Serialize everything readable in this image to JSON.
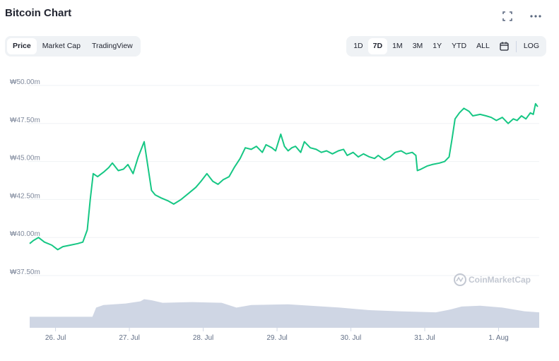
{
  "header": {
    "title": "Bitcoin Chart"
  },
  "tabs": [
    {
      "label": "Price",
      "active": true
    },
    {
      "label": "Market Cap",
      "active": false
    },
    {
      "label": "TradingView",
      "active": false
    }
  ],
  "ranges": [
    {
      "label": "1D",
      "active": false
    },
    {
      "label": "7D",
      "active": true
    },
    {
      "label": "1M",
      "active": false
    },
    {
      "label": "3M",
      "active": false
    },
    {
      "label": "1Y",
      "active": false
    },
    {
      "label": "YTD",
      "active": false
    },
    {
      "label": "ALL",
      "active": false
    }
  ],
  "log_label": "LOG",
  "icons": {
    "fullscreen": "fullscreen-icon",
    "more": "more-icon",
    "calendar": "calendar-icon"
  },
  "watermark": "CoinMarketCap",
  "colors": {
    "line": "#16c784",
    "volume": "#cfd6e4",
    "grid": "#eff2f5",
    "active_tab_bg": "#ffffff",
    "tabs_bg": "#eff2f5"
  },
  "chart_data": {
    "type": "line",
    "ylim": [
      37500000,
      50000000
    ],
    "y_ticks": [
      {
        "value": 50000000,
        "label": "₩50.00m"
      },
      {
        "value": 47500000,
        "label": "₩47.50m"
      },
      {
        "value": 45000000,
        "label": "₩45.00m"
      },
      {
        "value": 42500000,
        "label": "₩42.50m"
      },
      {
        "value": 40000000,
        "label": "₩40.00m"
      },
      {
        "value": 37500000,
        "label": "₩37.50m"
      }
    ],
    "x_ticks": [
      {
        "x": 0.35,
        "label": "26. Jul"
      },
      {
        "x": 1.35,
        "label": "27. Jul"
      },
      {
        "x": 2.35,
        "label": "28. Jul"
      },
      {
        "x": 3.35,
        "label": "29. Jul"
      },
      {
        "x": 4.35,
        "label": "30. Jul"
      },
      {
        "x": 5.35,
        "label": "31. Jul"
      },
      {
        "x": 6.35,
        "label": "1. Aug"
      }
    ],
    "xlim": [
      0,
      6.9
    ],
    "grid": true,
    "legend": "none",
    "price_series": {
      "name": "Price",
      "points": [
        [
          0.0,
          39.6
        ],
        [
          0.05,
          39.8
        ],
        [
          0.12,
          40.0
        ],
        [
          0.2,
          39.7
        ],
        [
          0.3,
          39.5
        ],
        [
          0.38,
          39.2
        ],
        [
          0.45,
          39.4
        ],
        [
          0.55,
          39.5
        ],
        [
          0.65,
          39.6
        ],
        [
          0.72,
          39.7
        ],
        [
          0.78,
          40.5
        ],
        [
          0.82,
          42.5
        ],
        [
          0.86,
          44.2
        ],
        [
          0.92,
          44.0
        ],
        [
          1.0,
          44.3
        ],
        [
          1.07,
          44.6
        ],
        [
          1.12,
          44.9
        ],
        [
          1.2,
          44.4
        ],
        [
          1.27,
          44.5
        ],
        [
          1.33,
          44.8
        ],
        [
          1.4,
          44.2
        ],
        [
          1.47,
          45.3
        ],
        [
          1.55,
          46.3
        ],
        [
          1.6,
          44.7
        ],
        [
          1.65,
          43.1
        ],
        [
          1.7,
          42.8
        ],
        [
          1.78,
          42.6
        ],
        [
          1.88,
          42.4
        ],
        [
          1.95,
          42.2
        ],
        [
          2.05,
          42.5
        ],
        [
          2.15,
          42.9
        ],
        [
          2.25,
          43.3
        ],
        [
          2.32,
          43.7
        ],
        [
          2.4,
          44.2
        ],
        [
          2.48,
          43.7
        ],
        [
          2.55,
          43.5
        ],
        [
          2.62,
          43.8
        ],
        [
          2.7,
          44.0
        ],
        [
          2.77,
          44.6
        ],
        [
          2.85,
          45.2
        ],
        [
          2.92,
          45.9
        ],
        [
          3.0,
          45.8
        ],
        [
          3.07,
          46.0
        ],
        [
          3.15,
          45.6
        ],
        [
          3.2,
          46.1
        ],
        [
          3.28,
          45.9
        ],
        [
          3.33,
          45.7
        ],
        [
          3.4,
          46.8
        ],
        [
          3.45,
          46.0
        ],
        [
          3.5,
          45.7
        ],
        [
          3.55,
          45.9
        ],
        [
          3.6,
          46.0
        ],
        [
          3.67,
          45.6
        ],
        [
          3.72,
          46.3
        ],
        [
          3.8,
          45.9
        ],
        [
          3.88,
          45.8
        ],
        [
          3.95,
          45.6
        ],
        [
          4.02,
          45.7
        ],
        [
          4.1,
          45.5
        ],
        [
          4.18,
          45.7
        ],
        [
          4.25,
          45.8
        ],
        [
          4.3,
          45.4
        ],
        [
          4.38,
          45.6
        ],
        [
          4.45,
          45.3
        ],
        [
          4.52,
          45.5
        ],
        [
          4.6,
          45.3
        ],
        [
          4.67,
          45.2
        ],
        [
          4.72,
          45.4
        ],
        [
          4.8,
          45.1
        ],
        [
          4.88,
          45.3
        ],
        [
          4.95,
          45.6
        ],
        [
          5.03,
          45.7
        ],
        [
          5.1,
          45.5
        ],
        [
          5.18,
          45.6
        ],
        [
          5.23,
          45.4
        ],
        [
          5.25,
          44.4
        ],
        [
          5.3,
          44.5
        ],
        [
          5.38,
          44.7
        ],
        [
          5.45,
          44.8
        ],
        [
          5.55,
          44.9
        ],
        [
          5.62,
          45.0
        ],
        [
          5.68,
          45.3
        ],
        [
          5.72,
          46.5
        ],
        [
          5.76,
          47.8
        ],
        [
          5.82,
          48.2
        ],
        [
          5.88,
          48.5
        ],
        [
          5.95,
          48.3
        ],
        [
          6.0,
          48.0
        ],
        [
          6.1,
          48.1
        ],
        [
          6.18,
          48.0
        ],
        [
          6.25,
          47.9
        ],
        [
          6.32,
          47.7
        ],
        [
          6.4,
          47.9
        ],
        [
          6.48,
          47.5
        ],
        [
          6.55,
          47.8
        ],
        [
          6.6,
          47.7
        ],
        [
          6.66,
          48.0
        ],
        [
          6.72,
          47.8
        ],
        [
          6.78,
          48.2
        ],
        [
          6.82,
          48.1
        ],
        [
          6.85,
          48.8
        ],
        [
          6.88,
          48.6
        ]
      ]
    },
    "volume_series": {
      "name": "Volume",
      "points": [
        [
          0.0,
          0.3
        ],
        [
          0.5,
          0.3
        ],
        [
          0.85,
          0.3
        ],
        [
          0.9,
          0.55
        ],
        [
          1.0,
          0.62
        ],
        [
          1.3,
          0.66
        ],
        [
          1.5,
          0.72
        ],
        [
          1.55,
          0.78
        ],
        [
          1.65,
          0.75
        ],
        [
          1.8,
          0.68
        ],
        [
          2.2,
          0.7
        ],
        [
          2.6,
          0.68
        ],
        [
          2.8,
          0.55
        ],
        [
          3.0,
          0.62
        ],
        [
          3.5,
          0.64
        ],
        [
          3.8,
          0.6
        ],
        [
          4.2,
          0.55
        ],
        [
          4.6,
          0.48
        ],
        [
          5.0,
          0.45
        ],
        [
          5.5,
          0.42
        ],
        [
          5.7,
          0.5
        ],
        [
          5.85,
          0.58
        ],
        [
          6.1,
          0.6
        ],
        [
          6.4,
          0.55
        ],
        [
          6.7,
          0.45
        ],
        [
          6.9,
          0.42
        ]
      ]
    }
  }
}
